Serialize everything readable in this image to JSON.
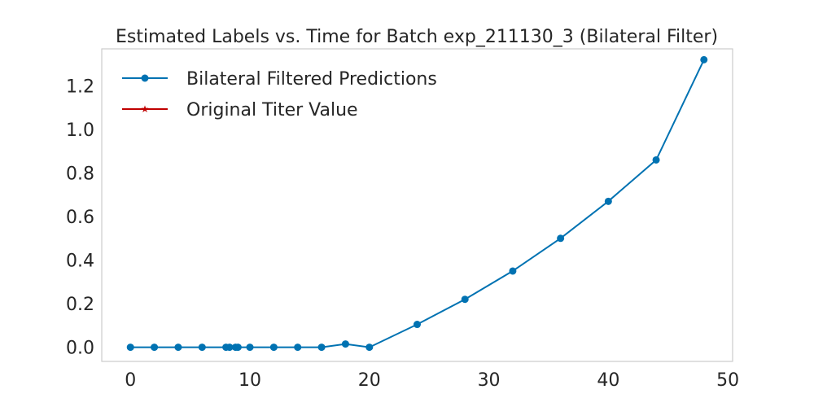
{
  "chart_data": {
    "type": "line",
    "title": "Estimated Labels vs. Time for Batch exp_211130_3 (Bilateral Filter)",
    "xlabel": "",
    "ylabel": "",
    "xlim": [
      -2.4,
      50.4
    ],
    "ylim": [
      -0.065,
      1.37
    ],
    "x_ticks": [
      0,
      10,
      20,
      30,
      40,
      50
    ],
    "y_ticks": [
      0.0,
      0.2,
      0.4,
      0.6,
      0.8,
      1.0,
      1.2
    ],
    "grid": false,
    "legend_position": "top-left",
    "series": [
      {
        "name": "Bilateral Filtered Predictions",
        "color": "#0072b2",
        "marker": "circle",
        "x": [
          0,
          2,
          4,
          6,
          8,
          8.3,
          8.8,
          9,
          10,
          12,
          14,
          16,
          18,
          20,
          24,
          28,
          32,
          36,
          40,
          44,
          48
        ],
        "y": [
          0.0,
          0.0,
          0.0,
          0.0,
          0.0,
          0.0,
          0.0,
          0.0,
          0.0,
          0.0,
          0.0,
          0.0,
          0.015,
          0.0,
          0.105,
          0.22,
          0.35,
          0.5,
          0.67,
          0.86,
          1.32
        ]
      },
      {
        "name": "Original Titer Value",
        "color": "#c00000",
        "marker": "star",
        "x": [],
        "y": []
      }
    ]
  }
}
